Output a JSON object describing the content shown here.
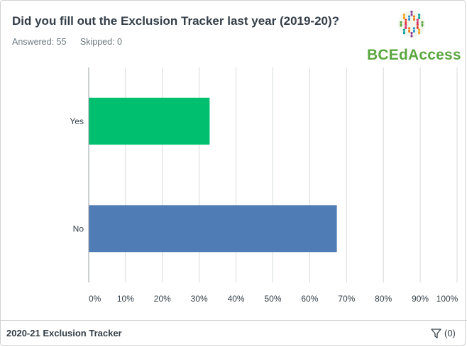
{
  "question": {
    "title": "Did you fill out the Exclusion Tracker last year (2019-20)?",
    "answered": "Answered: 55",
    "skipped": "Skipped: 0"
  },
  "logo": {
    "text": "BCEdAccess",
    "icon": "people-circle-logo"
  },
  "footer": {
    "survey_name": "2020-21 Exclusion Tracker",
    "filter_count": "(0)",
    "filter_icon": "filter-icon"
  },
  "colors": {
    "yes": "#00bf6f",
    "no": "#507cb6",
    "grid": "#d7d9da"
  },
  "chart_data": {
    "type": "bar",
    "orientation": "horizontal",
    "categories": [
      "Yes",
      "No"
    ],
    "values": [
      32.73,
      67.27
    ],
    "xlim": [
      0,
      100
    ],
    "x_ticks": [
      "0%",
      "10%",
      "20%",
      "30%",
      "40%",
      "50%",
      "60%",
      "70%",
      "80%",
      "90%",
      "100%"
    ],
    "grid": true,
    "legend": "none"
  }
}
